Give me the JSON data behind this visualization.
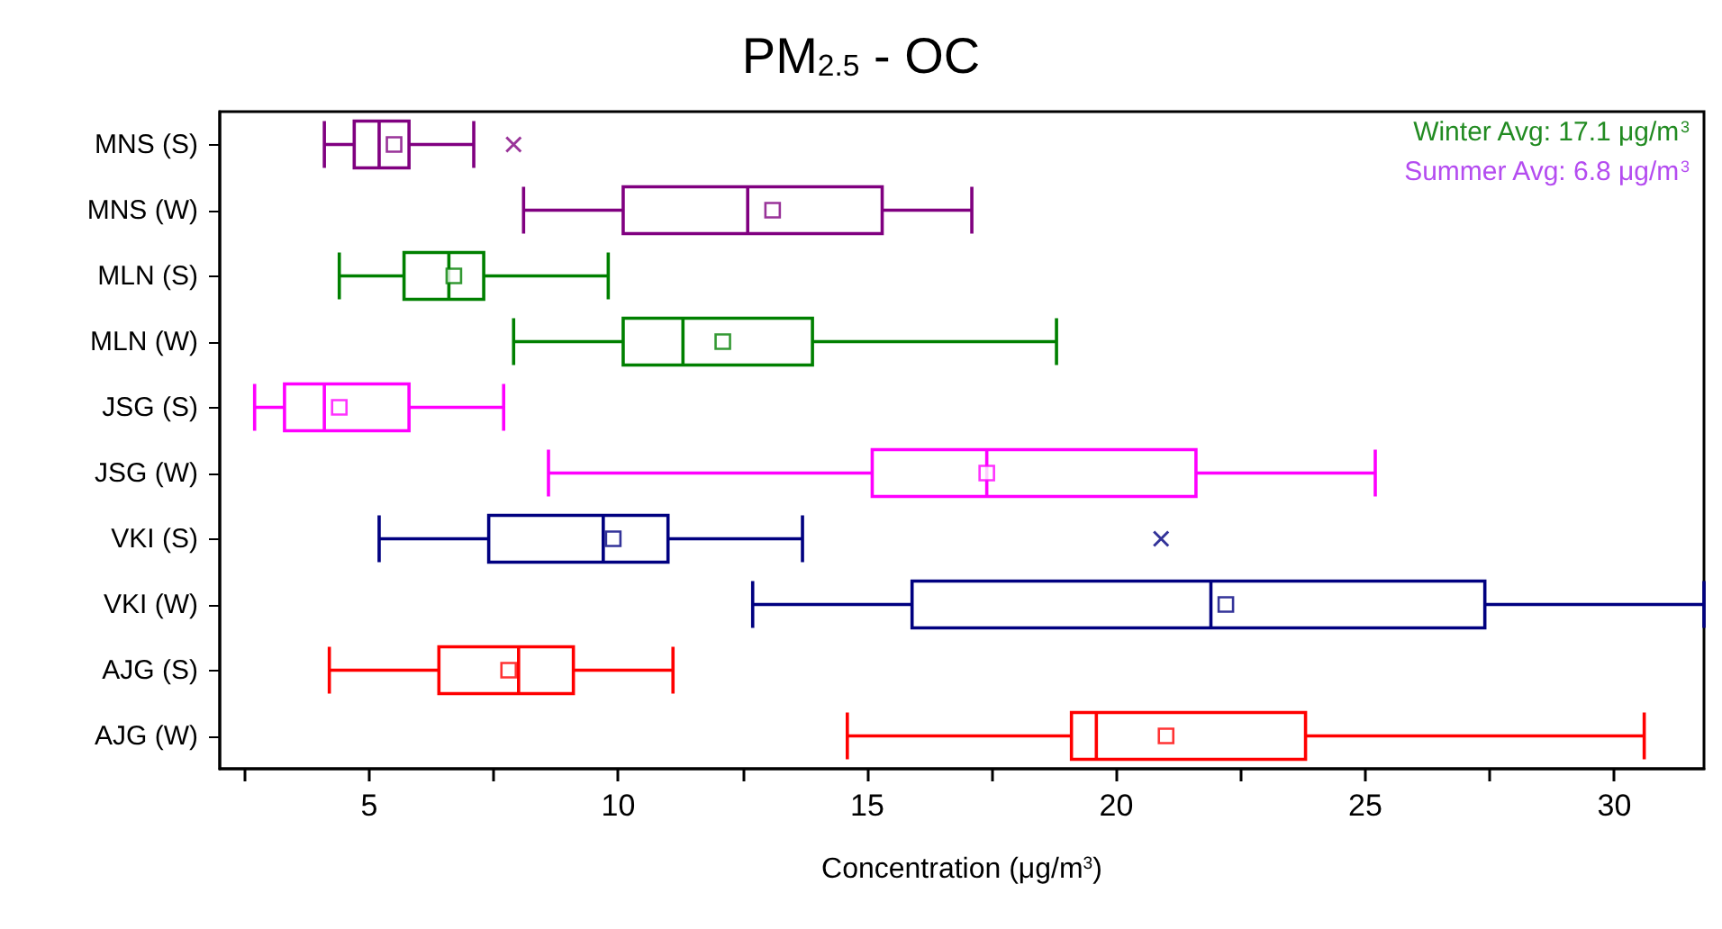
{
  "chart_data": {
    "type": "box",
    "orientation": "horizontal",
    "title": "PM$_{2.5}$ - OC",
    "xlabel": "Concentration (μg/m$^{3}$)",
    "categories": [
      "MNS (S)",
      "MNS (W)",
      "MLN (S)",
      "MLN (W)",
      "JSG (S)",
      "JSG (W)",
      "VKI (S)",
      "VKI (W)",
      "AJG (S)",
      "AJG (W)"
    ],
    "colors": [
      "#800080",
      "#800080",
      "#008000",
      "#008000",
      "#ff00ff",
      "#ff00ff",
      "#000080",
      "#000080",
      "#ff0000",
      "#ff0000"
    ],
    "boxes": [
      {
        "low": 4.1,
        "q1": 4.7,
        "median": 5.2,
        "q3": 5.8,
        "high": 7.1,
        "mean": 5.5,
        "outliers": [
          7.9
        ]
      },
      {
        "low": 8.1,
        "q1": 10.1,
        "median": 12.6,
        "q3": 15.3,
        "high": 17.1,
        "mean": 13.1
      },
      {
        "low": 4.4,
        "q1": 5.7,
        "median": 6.6,
        "q3": 7.3,
        "high": 9.8,
        "mean": 6.7
      },
      {
        "low": 7.9,
        "q1": 10.1,
        "median": 11.3,
        "q3": 13.9,
        "high": 18.8,
        "mean": 12.1
      },
      {
        "low": 2.7,
        "q1": 3.3,
        "median": 4.1,
        "q3": 5.8,
        "high": 7.7,
        "mean": 4.4
      },
      {
        "low": 8.6,
        "q1": 15.1,
        "median": 17.4,
        "q3": 21.6,
        "high": 25.2,
        "mean": 17.4
      },
      {
        "low": 5.2,
        "q1": 7.4,
        "median": 9.7,
        "q3": 11.0,
        "high": 13.7,
        "mean": 9.9,
        "outliers": [
          20.9
        ]
      },
      {
        "low": 12.7,
        "q1": 15.9,
        "median": 21.9,
        "q3": 27.4,
        "high": 31.8,
        "mean": 22.2
      },
      {
        "low": 4.2,
        "q1": 6.4,
        "median": 8.0,
        "q3": 9.1,
        "high": 11.1,
        "mean": 7.8
      },
      {
        "low": 14.6,
        "q1": 19.1,
        "median": 19.6,
        "q3": 23.8,
        "high": 30.6,
        "mean": 21.0
      }
    ],
    "xlim": [
      2,
      31.8
    ],
    "xticks": [
      {
        "value": 2.5,
        "label": null
      },
      5,
      {
        "value": 7.5,
        "label": null
      },
      10,
      {
        "value": 12.5,
        "label": null
      },
      15,
      {
        "value": 17.5,
        "label": null
      },
      20,
      {
        "value": 22.5,
        "label": null
      },
      25,
      {
        "value": 27.5,
        "label": null
      },
      30
    ],
    "annotations": [
      "Winter Avg: 17.1 μg/m$^{3}$",
      "Summer Avg: 6.8 μg/m$^{3}$"
    ]
  }
}
